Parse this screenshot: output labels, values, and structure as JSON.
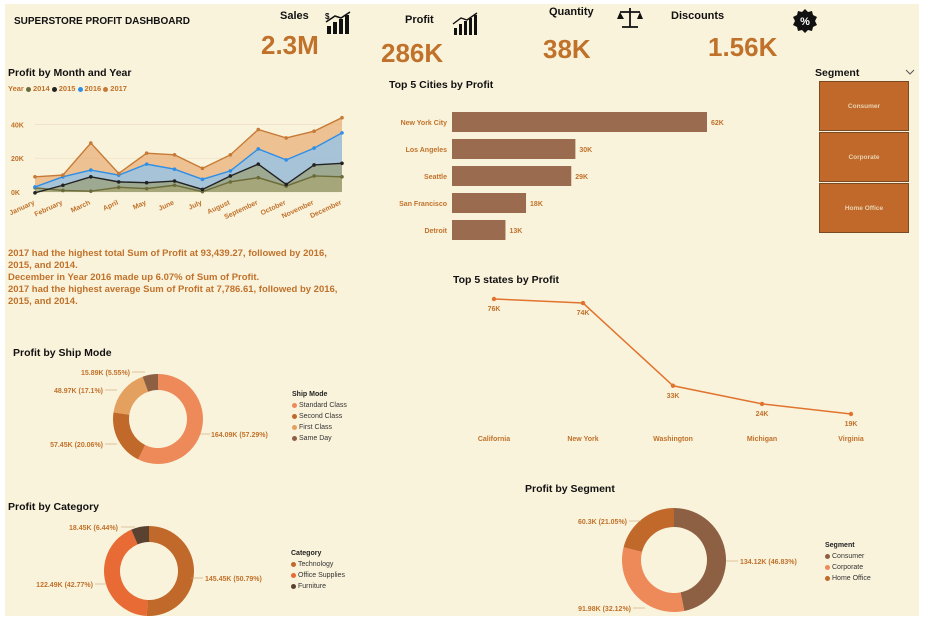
{
  "header": {
    "title": "SUPERSTORE PROFIT DASHBOARD"
  },
  "kpis": [
    {
      "label": "Sales",
      "value": "2.3M",
      "icon": "sales-chart-icon"
    },
    {
      "label": "Profit",
      "value": "286K",
      "icon": "bar-chart-icon"
    },
    {
      "label": "Quantity",
      "value": "38K",
      "icon": "scale-icon"
    },
    {
      "label": "Discounts",
      "value": "1.56K",
      "icon": "percent-badge-icon"
    }
  ],
  "colors": {
    "bg": "#faf3dc",
    "accent": "#c0722b",
    "bar": "#9a6b4e",
    "line": "#e0742e"
  },
  "insights": [
    "2017 had the highest total Sum of Profit at 93,439.27, followed by 2016, 2015, and 2014.",
    "December in Year 2016 made up 6.07% of Sum of Profit.",
    "2017 had the highest average Sum of Profit at 7,786.61, followed by 2016, 2015, and 2014."
  ],
  "segment_slicer": {
    "title": "Segment",
    "options": [
      "Consumer",
      "Corporate",
      "Home Office"
    ],
    "chevron": "chevron-down-icon"
  },
  "chart_data": [
    {
      "id": "month_year",
      "type": "area",
      "title": "Profit by Month and Year",
      "legend_title": "Year",
      "x": [
        "January",
        "February",
        "March",
        "April",
        "May",
        "June",
        "July",
        "August",
        "September",
        "October",
        "November",
        "December"
      ],
      "yticks": [
        "40K",
        "20K",
        "0K"
      ],
      "ylim": [
        0,
        45000
      ],
      "series": [
        {
          "name": "2014",
          "color": "#6b6b3a",
          "values": [
            2500,
            900,
            500,
            2800,
            2000,
            4000,
            200,
            6000,
            8500,
            3500,
            9500,
            9000
          ]
        },
        {
          "name": "2015",
          "color": "#222222",
          "values": [
            -500,
            4000,
            9000,
            6000,
            5500,
            6500,
            1500,
            9500,
            16500,
            4500,
            16000,
            17000
          ]
        },
        {
          "name": "2016",
          "color": "#2f8ee5",
          "values": [
            3000,
            9000,
            13000,
            10000,
            16500,
            13500,
            7500,
            12500,
            25500,
            19000,
            26000,
            35000
          ]
        },
        {
          "name": "2017",
          "color": "#c77a35",
          "values": [
            9000,
            10000,
            29000,
            11000,
            23000,
            22000,
            14000,
            22000,
            37000,
            32000,
            36000,
            44000
          ]
        }
      ]
    },
    {
      "id": "top_cities",
      "type": "bar",
      "title": "Top 5 Cities by Profit",
      "categories": [
        "New York City",
        "Los Angeles",
        "Seattle",
        "San Francisco",
        "Detroit"
      ],
      "values": [
        62000,
        30000,
        29000,
        18000,
        13000
      ],
      "labels": [
        "62K",
        "30K",
        "29K",
        "18K",
        "13K"
      ]
    },
    {
      "id": "top_states",
      "type": "line",
      "title": "Top 5 states by Profit",
      "categories": [
        "California",
        "New York",
        "Washington",
        "Michigan",
        "Virginia"
      ],
      "values": [
        76000,
        74000,
        33000,
        24000,
        19000
      ],
      "labels": [
        "76K",
        "74K",
        "33K",
        "24K",
        "19K"
      ]
    },
    {
      "id": "ship_mode",
      "type": "pie",
      "title": "Profit by Ship Mode",
      "legend_title": "Ship Mode",
      "slices": [
        {
          "name": "Standard Class",
          "value": 164090,
          "label": "164.09K (57.29%)",
          "color": "#ee8a5a"
        },
        {
          "name": "Second Class",
          "value": 57450,
          "label": "57.45K (20.06%)",
          "color": "#c0692a"
        },
        {
          "name": "First Class",
          "value": 48970,
          "label": "48.97K (17.1%)",
          "color": "#e3a05e"
        },
        {
          "name": "Same Day",
          "value": 15890,
          "label": "15.89K (5.55%)",
          "color": "#8e6043"
        }
      ]
    },
    {
      "id": "category",
      "type": "pie",
      "title": "Profit by Category",
      "legend_title": "Category",
      "slices": [
        {
          "name": "Technology",
          "value": 145450,
          "label": "145.45K (50.79%)",
          "color": "#c0692a"
        },
        {
          "name": "Office Supplies",
          "value": 122490,
          "label": "122.49K (42.77%)",
          "color": "#e86a34"
        },
        {
          "name": "Furniture",
          "value": 18450,
          "label": "18.45K (6.44%)",
          "color": "#5a4230"
        }
      ]
    },
    {
      "id": "segment",
      "type": "pie",
      "title": "Profit by Segment",
      "legend_title": "Segment",
      "slices": [
        {
          "name": "Consumer",
          "value": 134120,
          "label": "134.12K (46.83%)",
          "color": "#8e6043"
        },
        {
          "name": "Corporate",
          "value": 91980,
          "label": "91.98K (32.12%)",
          "color": "#ee8a5a"
        },
        {
          "name": "Home Office",
          "value": 60300,
          "label": "60.3K (21.05%)",
          "color": "#c0692a"
        }
      ]
    }
  ]
}
